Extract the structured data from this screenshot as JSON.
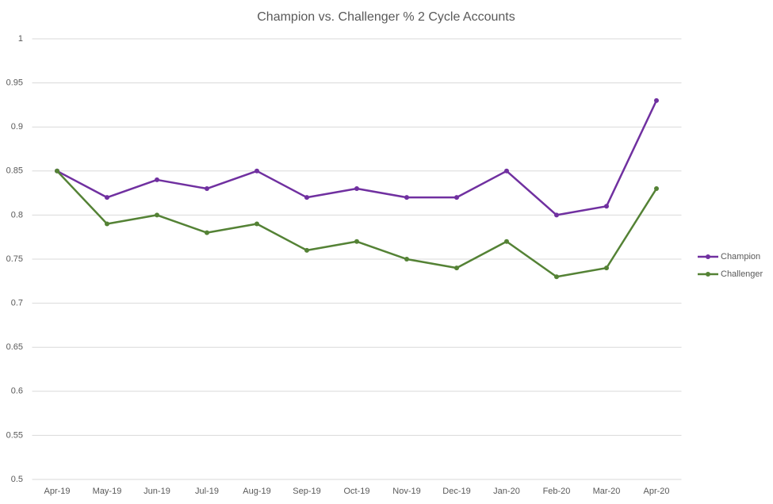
{
  "chart_data": {
    "type": "line",
    "title": "Champion vs. Challenger % 2 Cycle Accounts",
    "categories": [
      "Apr-19",
      "May-19",
      "Jun-19",
      "Jul-19",
      "Aug-19",
      "Sep-19",
      "Oct-19",
      "Nov-19",
      "Dec-19",
      "Jan-20",
      "Feb-20",
      "Mar-20",
      "Apr-20"
    ],
    "series": [
      {
        "name": "Champion",
        "color": "#7030a0",
        "values": [
          0.85,
          0.82,
          0.84,
          0.83,
          0.85,
          0.82,
          0.83,
          0.82,
          0.82,
          0.85,
          0.8,
          0.81,
          0.93
        ]
      },
      {
        "name": "Challenger",
        "color": "#548235",
        "values": [
          0.85,
          0.79,
          0.8,
          0.78,
          0.79,
          0.76,
          0.77,
          0.75,
          0.74,
          0.77,
          0.73,
          0.74,
          0.83
        ]
      }
    ],
    "ylim": [
      0.5,
      1
    ],
    "yticks": [
      0.5,
      0.55,
      0.6,
      0.65,
      0.7,
      0.75,
      0.8,
      0.85,
      0.9,
      0.95,
      1
    ],
    "grid": true,
    "legend": "right"
  }
}
